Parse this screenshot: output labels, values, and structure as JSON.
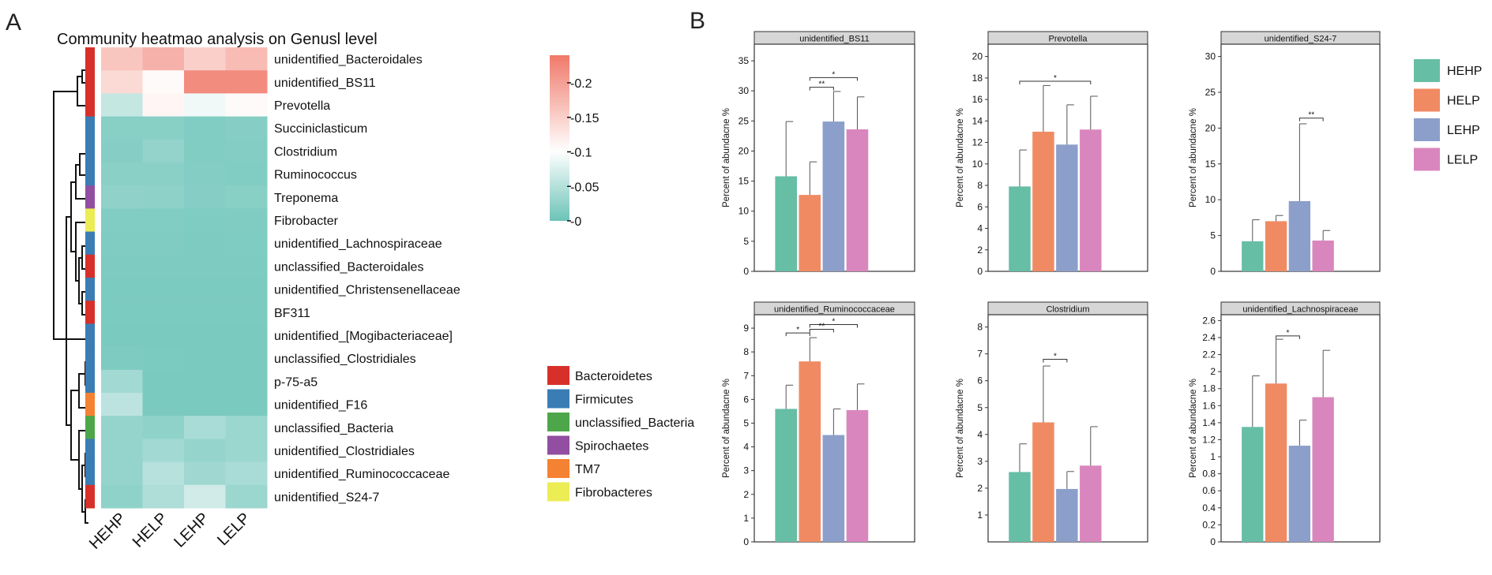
{
  "figure": {
    "label_a": "A",
    "label_b": "B"
  },
  "heatmap": {
    "title": "Community heatmao analysis on Genusl level",
    "columns": [
      "HEHP",
      "HELP",
      "LEHP",
      "LELP"
    ],
    "rows": [
      "unidentified_Bacteroidales",
      "unidentified_BS11",
      "Prevotella",
      "Succiniclasticum",
      "Clostridium",
      "Ruminococcus",
      "Treponema",
      "Fibrobacter",
      "unidentified_Lachnospiraceae",
      "unclassified_Bacteroidales",
      "unidentified_Christensenellaceae",
      "BF311",
      "unidentified_[Mogibacteriaceae]",
      "unclassified_Clostridiales",
      "p-75-a5",
      "unidentified_F16",
      "unclassified_Bacteria",
      "unidentified_Clostridiales",
      "unidentified_Ruminococcaceae",
      "unidentified_S24-7"
    ],
    "values": [
      [
        0.16,
        0.18,
        0.15,
        0.17
      ],
      [
        0.14,
        0.105,
        0.22,
        0.22
      ],
      [
        0.06,
        0.11,
        0.09,
        0.105
      ],
      [
        0.02,
        0.02,
        0.015,
        0.018
      ],
      [
        0.018,
        0.028,
        0.015,
        0.016
      ],
      [
        0.022,
        0.022,
        0.016,
        0.015
      ],
      [
        0.026,
        0.024,
        0.018,
        0.02
      ],
      [
        0.015,
        0.015,
        0.013,
        0.014
      ],
      [
        0.014,
        0.014,
        0.012,
        0.013
      ],
      [
        0.012,
        0.012,
        0.012,
        0.012
      ],
      [
        0.011,
        0.011,
        0.011,
        0.011
      ],
      [
        0.011,
        0.011,
        0.011,
        0.011
      ],
      [
        0.01,
        0.01,
        0.01,
        0.01
      ],
      [
        0.012,
        0.011,
        0.01,
        0.01
      ],
      [
        0.04,
        0.01,
        0.01,
        0.01
      ],
      [
        0.06,
        0.01,
        0.01,
        0.01
      ],
      [
        0.03,
        0.025,
        0.045,
        0.035
      ],
      [
        0.03,
        0.04,
        0.03,
        0.035
      ],
      [
        0.03,
        0.055,
        0.038,
        0.045
      ],
      [
        0.025,
        0.05,
        0.075,
        0.035
      ]
    ],
    "phylum_of_row": [
      "Bacteroidetes",
      "Bacteroidetes",
      "Bacteroidetes",
      "Firmicutes",
      "Firmicutes",
      "Firmicutes",
      "Spirochaetes",
      "Fibrobacteres",
      "Firmicutes",
      "Bacteroidetes",
      "Firmicutes",
      "Bacteroidetes",
      "Firmicutes",
      "Firmicutes",
      "Firmicutes",
      "TM7",
      "unclassified_Bacteria",
      "Firmicutes",
      "Firmicutes",
      "Bacteroidetes"
    ],
    "colorbar": {
      "min": 0,
      "max": 0.24,
      "ticks": [
        "0.2",
        "0.15",
        "0.1",
        "0.05",
        "0"
      ],
      "tick_values": [
        0.2,
        0.15,
        0.1,
        0.05,
        0
      ]
    },
    "colors": {
      "low": "#6cc3b7",
      "mid": "#ffffff",
      "high": "#f0796a"
    },
    "phylum_legend": [
      {
        "name": "Bacteroidetes",
        "color": "#d7302a"
      },
      {
        "name": "Firmicutes",
        "color": "#3a7db5"
      },
      {
        "name": "unclassified_Bacteria",
        "color": "#4ea64a"
      },
      {
        "name": "Spirochaetes",
        "color": "#924ea0"
      },
      {
        "name": "TM7",
        "color": "#f58132"
      },
      {
        "name": "Fibrobacteres",
        "color": "#ecec55"
      }
    ]
  },
  "bar_legend": [
    {
      "name": "HEHP",
      "color": "#66bea5"
    },
    {
      "name": "HELP",
      "color": "#f08a63"
    },
    {
      "name": "LEHP",
      "color": "#8c9fca"
    },
    {
      "name": "LELP",
      "color": "#d986be"
    }
  ],
  "chart_data": [
    {
      "type": "bar",
      "title": "unidentified_BS11",
      "ylabel": "Percent of abundacne %",
      "categories": [
        "HEHP",
        "HELP",
        "LEHP",
        "LELP"
      ],
      "values": [
        15.8,
        12.7,
        24.9,
        23.6
      ],
      "errors": [
        9.1,
        5.5,
        5.0,
        5.4
      ],
      "ylim": [
        0,
        37.5
      ],
      "yticks": [
        0,
        5,
        10,
        15,
        20,
        25,
        30,
        35
      ],
      "yticklabels": [
        "0",
        "5",
        "10",
        "15",
        "20",
        "25",
        "30",
        "35"
      ],
      "significance": [
        {
          "from": 1,
          "to": 3,
          "label": "*",
          "y": 32.2
        },
        {
          "from": 1,
          "to": 2,
          "label": "**",
          "y": 30.6
        }
      ]
    },
    {
      "type": "bar",
      "title": "Prevotella",
      "ylabel": "Percent of abundacne %",
      "categories": [
        "HEHP",
        "HELP",
        "LEHP",
        "LELP"
      ],
      "values": [
        7.9,
        13.0,
        11.8,
        13.2
      ],
      "errors": [
        3.4,
        4.3,
        3.7,
        3.1
      ],
      "ylim": [
        0,
        21
      ],
      "yticks": [
        0,
        2,
        4,
        6,
        8,
        10,
        12,
        14,
        16,
        18,
        20
      ],
      "yticklabels": [
        "0",
        "2",
        "4",
        "6",
        "8",
        "10",
        "12",
        "14",
        "16",
        "18",
        "20"
      ],
      "significance": [
        {
          "from": 0,
          "to": 3,
          "label": "*",
          "y": 17.7
        }
      ]
    },
    {
      "type": "bar",
      "title": "unidentified_S24-7",
      "ylabel": "Percent of abundacne %",
      "categories": [
        "HEHP",
        "HELP",
        "LEHP",
        "LELP"
      ],
      "values": [
        4.2,
        7.0,
        9.8,
        4.3
      ],
      "errors": [
        3.0,
        0.8,
        10.8,
        1.4
      ],
      "ylim": [
        0,
        31.5
      ],
      "yticks": [
        0,
        5,
        10,
        15,
        20,
        25,
        30
      ],
      "yticklabels": [
        "0",
        "5",
        "10",
        "15",
        "20",
        "25",
        "30"
      ],
      "significance": [
        {
          "from": 2,
          "to": 3,
          "label": "**",
          "y": 21.4
        }
      ]
    },
    {
      "type": "bar",
      "title": "unidentified_Ruminococcaceae",
      "ylabel": "Percent of abundacne %",
      "categories": [
        "HEHP",
        "HELP",
        "LEHP",
        "LELP"
      ],
      "values": [
        5.6,
        7.6,
        4.5,
        5.55
      ],
      "errors": [
        1.0,
        1.0,
        1.1,
        1.1
      ],
      "ylim": [
        0,
        9.5
      ],
      "yticks": [
        0,
        1,
        2,
        3,
        4,
        5,
        6,
        7,
        8,
        9
      ],
      "yticklabels": [
        "0",
        "1",
        "2",
        "3",
        "4",
        "5",
        "6",
        "7",
        "8",
        "9"
      ],
      "significance": [
        {
          "from": 0,
          "to": 1,
          "label": "*",
          "y": 8.8
        },
        {
          "from": 1,
          "to": 3,
          "label": "*",
          "y": 9.15
        },
        {
          "from": 1,
          "to": 2,
          "label": "**",
          "y": 8.95
        }
      ]
    },
    {
      "type": "bar",
      "title": "Clostridium",
      "ylabel": "Percent of abundacne %",
      "categories": [
        "HEHP",
        "HELP",
        "LEHP",
        "LELP"
      ],
      "values": [
        2.6,
        4.45,
        1.97,
        2.84
      ],
      "errors": [
        1.05,
        2.1,
        0.65,
        1.45
      ],
      "ylim": [
        0,
        8.4
      ],
      "yticks": [
        0,
        1,
        2,
        3,
        4,
        5,
        6,
        7,
        8
      ],
      "yticklabels": [
        "1",
        "2",
        "3",
        "4",
        "5",
        "6",
        "7",
        "8"
      ],
      "yticklabels_from": 1,
      "significance": [
        {
          "from": 1,
          "to": 2,
          "label": "*",
          "y": 6.8
        }
      ]
    },
    {
      "type": "bar",
      "title": "unidentified_Lachnospiraceae",
      "ylabel": "Percent of abundacne %",
      "categories": [
        "HEHP",
        "HELP",
        "LEHP",
        "LELP"
      ],
      "values": [
        1.35,
        1.86,
        1.13,
        1.7
      ],
      "errors": [
        0.6,
        0.52,
        0.3,
        0.55
      ],
      "ylim": [
        0,
        2.65
      ],
      "yticks": [
        0,
        0.2,
        0.4,
        0.6,
        0.8,
        1,
        1.2,
        1.4,
        1.6,
        1.8,
        2,
        2.2,
        2.4,
        2.6
      ],
      "yticklabels": [
        "0",
        "0.2",
        "0.4",
        "0.6",
        "0.8",
        "1",
        "1.2",
        "1.4",
        "1.6",
        "1.8",
        "2",
        "2.2",
        "2.4",
        "2.6"
      ],
      "significance": [
        {
          "from": 1,
          "to": 2,
          "label": "*",
          "y": 2.42
        }
      ]
    }
  ]
}
